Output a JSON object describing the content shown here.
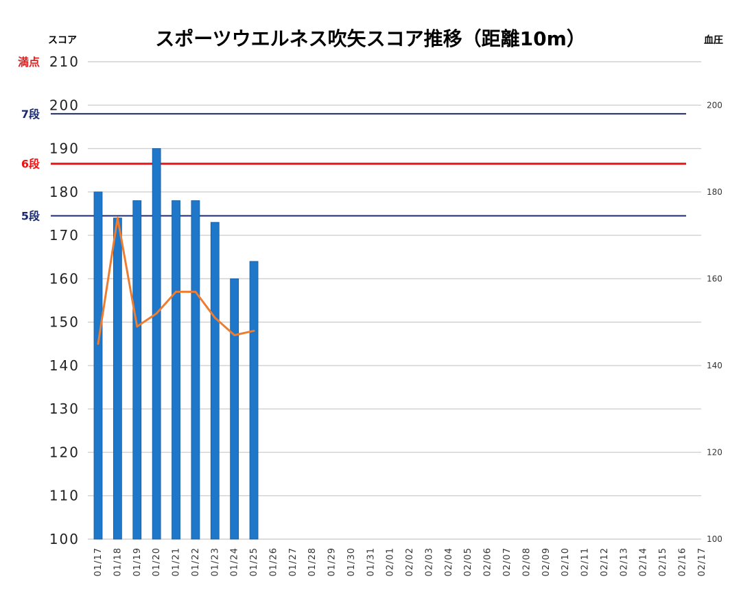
{
  "chart_data": {
    "type": "bar+line",
    "title": "スポーツウエルネス吹矢スコア推移（距離10m）",
    "ylabel_left": "スコア",
    "ylabel_right": "血圧",
    "ylim_left": [
      100,
      210
    ],
    "yticks_left": [
      100,
      110,
      120,
      130,
      140,
      150,
      160,
      170,
      180,
      190,
      200,
      210
    ],
    "ylim_right": [
      100,
      210
    ],
    "yticks_right": [
      100,
      120,
      140,
      160,
      180,
      200
    ],
    "categories": [
      "01/17",
      "01/18",
      "01/19",
      "01/20",
      "01/21",
      "01/22",
      "01/23",
      "01/24",
      "01/25",
      "01/26",
      "01/27",
      "01/28",
      "01/29",
      "01/30",
      "01/31",
      "02/01",
      "02/02",
      "02/03",
      "02/04",
      "02/05",
      "02/06",
      "02/07",
      "02/08",
      "02/09",
      "02/10",
      "02/11",
      "02/12",
      "02/13",
      "02/14",
      "02/15",
      "02/16",
      "02/17"
    ],
    "series": [
      {
        "kind": "bar",
        "color": "#1f77c9",
        "values": [
          180,
          174,
          178,
          190,
          178,
          178,
          173,
          160,
          164,
          null,
          null,
          null,
          null,
          null,
          null,
          null,
          null,
          null,
          null,
          null,
          null,
          null,
          null,
          null,
          null,
          null,
          null,
          null,
          null,
          null,
          null,
          null
        ]
      },
      {
        "kind": "line",
        "color": "#ed7d31",
        "values": [
          145,
          174,
          149,
          152,
          157,
          157,
          151,
          147,
          148,
          null,
          null,
          null,
          null,
          null,
          null,
          null,
          null,
          null,
          null,
          null,
          null,
          null,
          null,
          null,
          null,
          null,
          null,
          null,
          null,
          null,
          null,
          null
        ]
      }
    ],
    "reference_lines": [
      {
        "label": "満点",
        "value": 210,
        "color": "#e02020",
        "kind": "label-only"
      },
      {
        "label": "7段",
        "value": 198,
        "color": "#1a2a6c"
      },
      {
        "label": "6段",
        "value": 186.5,
        "color": "#ee1111"
      },
      {
        "label": "5段",
        "value": 174.5,
        "color": "#1a2a6c"
      }
    ],
    "grid": true
  }
}
